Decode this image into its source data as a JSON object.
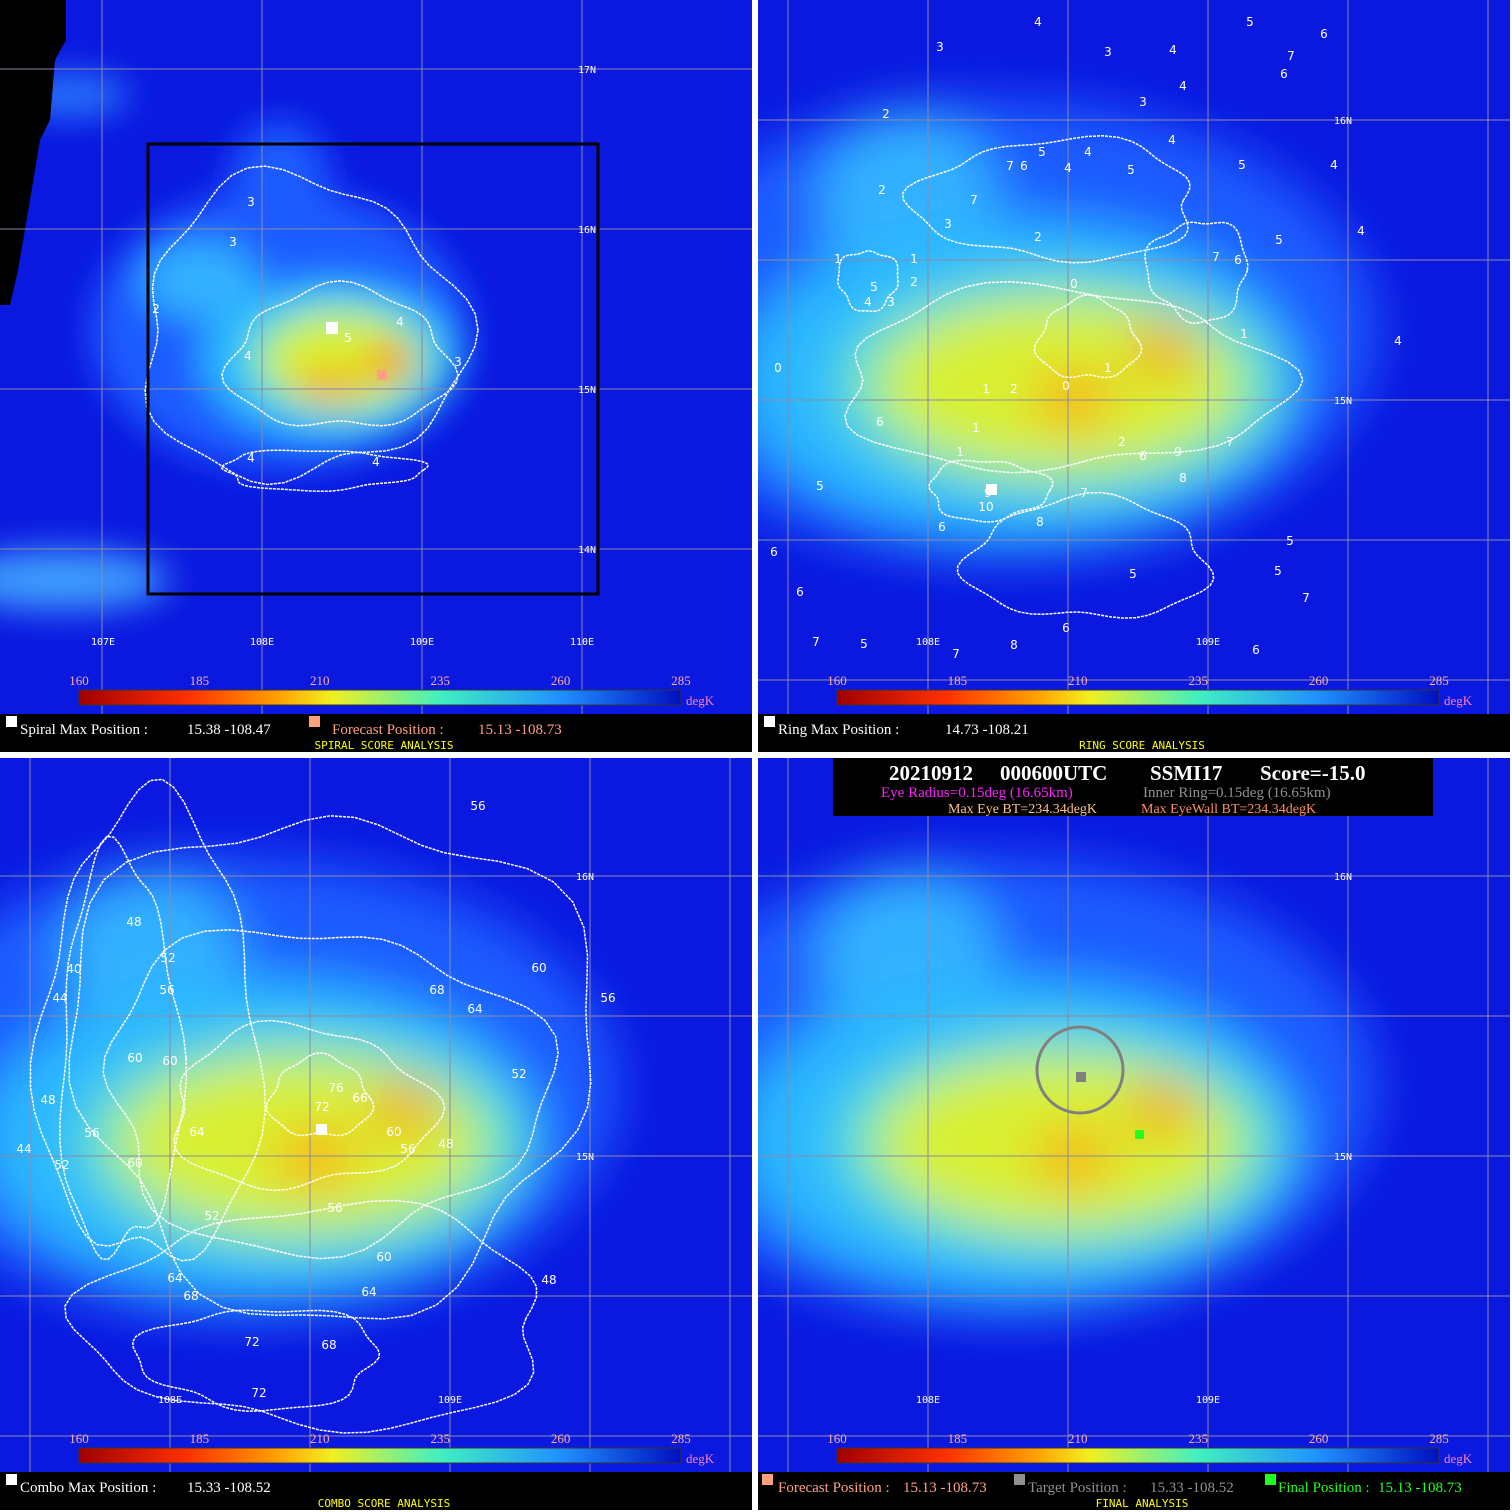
{
  "panels": [
    {
      "lat_labels": [
        "17N",
        "16N",
        "15N",
        "14N"
      ],
      "lon_labels": [
        "107E",
        "108E",
        "109E",
        "110E"
      ],
      "colorbar": {
        "ticks": [
          160,
          185,
          210,
          235,
          260,
          285
        ],
        "unit": "degK"
      },
      "contour_labels": [
        "3",
        "3",
        "2",
        "4",
        "5",
        "4",
        "3",
        "4",
        "4"
      ],
      "footer": {
        "items": [
          {
            "label": "Spiral Max Position :",
            "value": "15.38 -108.47"
          },
          {
            "label": "Forecast Position :",
            "value": "15.13 -108.73"
          }
        ],
        "title": "SPIRAL SCORE ANALYSIS"
      }
    },
    {
      "lat_labels": [
        "16N",
        "15N"
      ],
      "lon_labels": [
        "108E",
        "109E"
      ],
      "colorbar": {
        "ticks": [
          160,
          185,
          210,
          235,
          260,
          285
        ],
        "unit": "degK"
      },
      "contour_labels": [
        "4",
        "5",
        "6",
        "3",
        "3",
        "4",
        "7",
        "6",
        "2",
        "3",
        "4",
        "2",
        "5",
        "4",
        "7",
        "6",
        "4",
        "5",
        "4",
        "5",
        "4",
        "3",
        "7",
        "2",
        "1",
        "1",
        "2",
        "5",
        "4",
        "3",
        "5",
        "7",
        "6",
        "4",
        "0",
        "1",
        "0",
        "1",
        "2",
        "0",
        "1",
        "6",
        "1",
        "2",
        "7",
        "6",
        "9",
        "8",
        "5",
        "1",
        "9",
        "10",
        "8",
        "7",
        "6",
        "6",
        "5",
        "5",
        "5",
        "6",
        "7",
        "7",
        "5",
        "6",
        "8",
        "7",
        "6",
        "4"
      ],
      "footer": {
        "items": [
          {
            "label": "Ring Max Position :",
            "value": "14.73 -108.21"
          }
        ],
        "title": "RING SCORE ANALYSIS"
      }
    },
    {
      "lat_labels": [
        "16N",
        "15N"
      ],
      "lon_labels": [
        "108E",
        "109E"
      ],
      "colorbar": {
        "ticks": [
          160,
          185,
          210,
          235,
          260,
          285
        ],
        "unit": "degK"
      },
      "contour_labels": [
        "56",
        "48",
        "52",
        "40",
        "44",
        "56",
        "68",
        "60",
        "56",
        "64",
        "60",
        "60",
        "76",
        "52",
        "48",
        "72",
        "66",
        "64",
        "60",
        "56",
        "48",
        "56",
        "44",
        "52",
        "60",
        "56",
        "52",
        "60",
        "48",
        "64",
        "64",
        "68",
        "72",
        "68",
        "72"
      ],
      "footer": {
        "items": [
          {
            "label": "Combo Max Position :",
            "value": "15.33 -108.52"
          }
        ],
        "title": "COMBO SCORE ANALYSIS"
      }
    },
    {
      "lat_labels": [
        "16N",
        "15N"
      ],
      "lon_labels": [
        "108E",
        "109E"
      ],
      "colorbar": {
        "ticks": [
          160,
          185,
          210,
          235,
          260,
          285
        ],
        "unit": "degK"
      },
      "contour_labels": [],
      "header": {
        "date": "20210912",
        "time": "000600UTC",
        "sensor": "SSMI17",
        "score": "Score=-15.0",
        "eye_radius": "Eye Radius=0.15deg (16.65km)",
        "inner_ring": "Inner Ring=0.15deg (16.65km)",
        "max_eye_bt": "Max Eye BT=234.34degK",
        "max_eyewall_bt": "Max EyeWall BT=234.34degK"
      },
      "footer": {
        "items": [
          {
            "label": "Forecast Position :",
            "value": "15.13 -108.73"
          },
          {
            "label": "Target Position :",
            "value": "15.33 -108.52"
          },
          {
            "label": "Final Position :",
            "value": "15.13 -108.73"
          }
        ],
        "title": "FINAL ANALYSIS"
      }
    }
  ]
}
